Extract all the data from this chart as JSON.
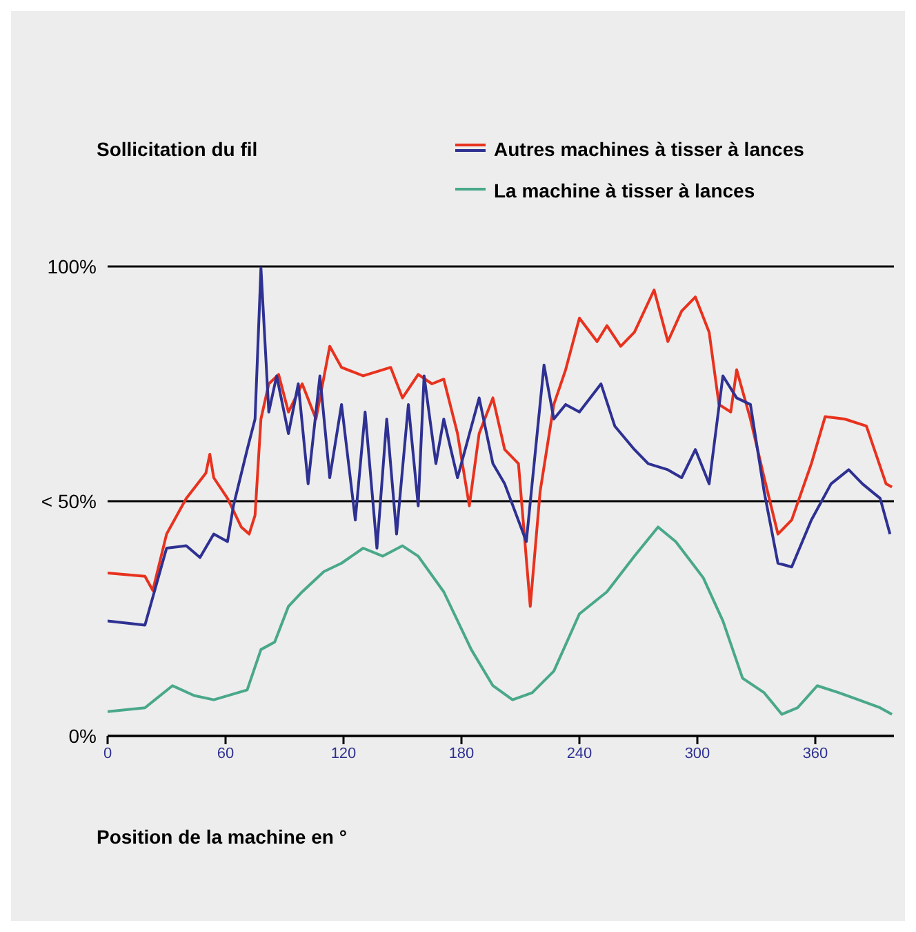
{
  "chart_data": {
    "type": "line",
    "ylabel": "Sollicitation du fil",
    "xlabel": "Position de la machine en °",
    "xlim": [
      0,
      400
    ],
    "xticks": [
      0,
      60,
      120,
      180,
      240,
      300,
      360
    ],
    "ylim": [
      0,
      100
    ],
    "yticks": [
      {
        "value": 0,
        "label": "0%"
      },
      {
        "value": 50,
        "label": "< 50%"
      },
      {
        "value": 100,
        "label": "100%"
      }
    ],
    "grid": "y",
    "legend": "top right",
    "marker": "none",
    "line_style": "solid",
    "series": [
      {
        "name": "Autres machines à tisser à lances",
        "color": "#e8321e",
        "x": [
          0,
          19,
          23,
          30,
          40,
          50,
          52,
          54,
          61,
          68,
          72,
          75,
          78,
          82,
          87,
          92,
          99,
          106,
          113,
          119,
          130,
          144,
          150,
          158,
          165,
          171,
          178,
          184,
          189,
          196,
          202,
          209,
          215,
          220,
          227,
          233,
          240,
          249,
          254,
          261,
          268,
          278,
          285,
          292,
          299,
          306,
          311,
          317,
          320,
          327,
          334,
          341,
          348,
          358,
          365,
          375,
          386,
          396,
          399
        ],
        "values": [
          34.7,
          34,
          31,
          43,
          50.6,
          56,
          60,
          55,
          50.6,
          44.5,
          43,
          47,
          67.5,
          75,
          77,
          69,
          75,
          67.5,
          83,
          78.5,
          76.7,
          78.5,
          72,
          77,
          75,
          76,
          64.4,
          49,
          64.4,
          72,
          61,
          58,
          27.6,
          52,
          70.6,
          78,
          89,
          84,
          87.4,
          83,
          86,
          95,
          84,
          90.5,
          93.5,
          86,
          70.6,
          69,
          78,
          67.5,
          55,
          43,
          46,
          58,
          68,
          67.5,
          66,
          53.7,
          53
        ]
      },
      {
        "color": "#2e3192",
        "x": [
          0,
          19,
          30,
          40,
          47,
          54,
          61,
          64,
          71,
          75,
          78,
          82,
          86,
          92,
          97,
          102,
          108,
          113,
          119,
          126,
          131,
          137,
          142,
          147,
          153,
          158,
          161,
          167,
          171,
          178,
          189,
          196,
          202,
          213,
          222,
          227,
          233,
          240,
          251,
          258,
          268,
          275,
          285,
          292,
          299,
          306,
          313,
          320,
          327,
          334,
          341,
          348,
          358,
          368,
          377,
          384,
          393,
          398
        ],
        "values": [
          24.5,
          23.6,
          40,
          40.5,
          38,
          43,
          41.4,
          49,
          61,
          67.5,
          99.7,
          69,
          76.7,
          64.4,
          75,
          53.7,
          76.7,
          55,
          70.6,
          46,
          69,
          40,
          67.5,
          43,
          70.6,
          49,
          76.7,
          58,
          67.5,
          55,
          72,
          58,
          53.7,
          41.4,
          79,
          67.5,
          70.6,
          69,
          75,
          66,
          61,
          58,
          56.7,
          55,
          61,
          53.7,
          76.7,
          72,
          70.6,
          52,
          36.8,
          36,
          46,
          53.7,
          56.7,
          53.7,
          50.6,
          43
        ]
      },
      {
        "name": "La machine à tisser à lances",
        "color": "#4aa88a",
        "x": [
          0,
          19,
          33,
          44,
          54,
          71,
          78,
          85,
          92,
          99,
          110,
          119,
          130,
          140,
          150,
          158,
          171,
          185,
          196,
          206,
          216,
          227,
          240,
          254,
          268,
          280,
          289,
          303,
          313,
          323,
          334,
          343,
          351,
          361,
          372,
          382,
          393,
          399
        ],
        "values": [
          5.2,
          6,
          10.7,
          8.6,
          7.7,
          9.8,
          18.4,
          20,
          27.6,
          30.7,
          35,
          36.8,
          40,
          38.3,
          40.5,
          38.3,
          30.7,
          18.4,
          10.7,
          7.7,
          9.2,
          13.8,
          26,
          30.7,
          38.3,
          44.5,
          41.4,
          33.7,
          24.5,
          12.3,
          9.2,
          4.6,
          6,
          10.7,
          9.2,
          7.7,
          6,
          4.6
        ]
      }
    ]
  }
}
